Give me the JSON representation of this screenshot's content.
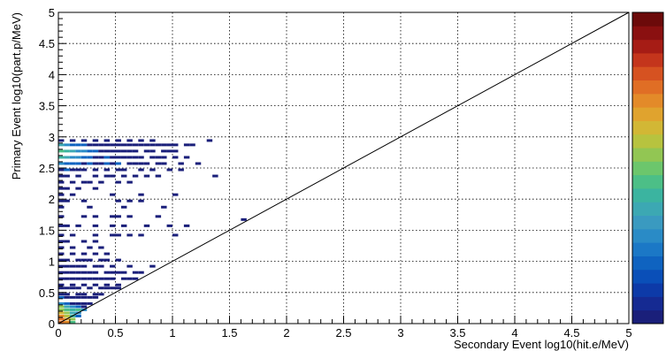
{
  "chart_data": {
    "type": "heatmap",
    "title": "",
    "xlabel": "Secondary Event log10(hit.e/MeV)",
    "ylabel": "Primary Event log10(part.p/MeV)",
    "xlim": [
      0,
      5
    ],
    "ylim": [
      0,
      5
    ],
    "x_ticks": [
      "0",
      "0.5",
      "1",
      "1.5",
      "2",
      "2.5",
      "3",
      "3.5",
      "4",
      "4.5",
      "5"
    ],
    "y_ticks": [
      "0",
      "0.5",
      "1",
      "1.5",
      "2",
      "2.5",
      "3",
      "3.5",
      "4",
      "4.5",
      "5"
    ],
    "grid": true,
    "reference_line": {
      "from": [
        0,
        0
      ],
      "to": [
        5,
        5
      ],
      "color": "#000000"
    },
    "bin_width": 0.05,
    "palette": [
      "#1a1f7a",
      "#152a92",
      "#0d3aa8",
      "#0a4fb8",
      "#0f63c0",
      "#1b78c6",
      "#2a8bc6",
      "#3a9ac0",
      "#3ca8b3",
      "#3bb4a0",
      "#4cbf87",
      "#6cc66c",
      "#92c653",
      "#b7c33f",
      "#d2b735",
      "#e0a32e",
      "#e38a29",
      "#e06e25",
      "#d65221",
      "#c4351c",
      "#a61c15",
      "#8a1010",
      "#6c0a0a"
    ],
    "cells": [
      [
        0.0,
        0.0,
        22
      ],
      [
        0.05,
        0.0,
        17
      ],
      [
        0.1,
        0.0,
        6
      ],
      [
        0.0,
        0.05,
        20
      ],
      [
        0.05,
        0.05,
        16
      ],
      [
        0.1,
        0.05,
        8
      ],
      [
        0.0,
        0.1,
        18
      ],
      [
        0.05,
        0.1,
        10
      ],
      [
        0.1,
        0.1,
        5
      ],
      [
        0.15,
        0.1,
        2
      ],
      [
        0.0,
        0.15,
        13
      ],
      [
        0.05,
        0.15,
        8
      ],
      [
        0.1,
        0.15,
        4
      ],
      [
        0.15,
        0.15,
        3
      ],
      [
        0.0,
        0.2,
        9
      ],
      [
        0.05,
        0.2,
        6
      ],
      [
        0.1,
        0.2,
        5
      ],
      [
        0.15,
        0.2,
        6
      ],
      [
        0.2,
        0.2,
        3
      ],
      [
        0.0,
        0.25,
        8
      ],
      [
        0.05,
        0.25,
        4
      ],
      [
        0.1,
        0.25,
        3
      ],
      [
        0.15,
        0.25,
        2
      ],
      [
        0.2,
        0.25,
        1
      ],
      [
        0.0,
        0.3,
        3
      ],
      [
        0.05,
        0.3,
        2
      ],
      [
        0.1,
        0.3,
        1
      ],
      [
        0.15,
        0.3,
        1
      ],
      [
        0.2,
        0.3,
        1
      ],
      [
        0.25,
        0.3,
        1
      ],
      [
        0.0,
        0.4,
        2
      ],
      [
        0.05,
        0.4,
        1
      ],
      [
        0.1,
        0.4,
        1
      ],
      [
        0.15,
        0.4,
        1
      ],
      [
        0.2,
        0.4,
        1
      ],
      [
        0.25,
        0.4,
        1
      ],
      [
        0.3,
        0.4,
        1
      ],
      [
        0.0,
        0.45,
        1
      ],
      [
        0.05,
        0.45,
        1
      ],
      [
        0.15,
        0.45,
        1
      ],
      [
        0.2,
        0.45,
        1
      ],
      [
        0.3,
        0.45,
        1
      ],
      [
        0.35,
        0.45,
        1
      ],
      [
        0.0,
        0.55,
        1
      ],
      [
        0.05,
        0.55,
        1
      ],
      [
        0.1,
        0.55,
        1
      ],
      [
        0.15,
        0.55,
        1
      ],
      [
        0.25,
        0.55,
        1
      ],
      [
        0.35,
        0.55,
        1
      ],
      [
        0.4,
        0.55,
        1
      ],
      [
        0.45,
        0.55,
        1
      ],
      [
        0.5,
        0.55,
        1
      ],
      [
        0.0,
        0.6,
        1
      ],
      [
        0.1,
        0.6,
        1
      ],
      [
        0.2,
        0.6,
        1
      ],
      [
        0.3,
        0.6,
        1
      ],
      [
        0.4,
        0.6,
        1
      ],
      [
        0.5,
        0.6,
        1
      ],
      [
        0.0,
        0.7,
        1
      ],
      [
        0.05,
        0.7,
        1
      ],
      [
        0.1,
        0.7,
        1
      ],
      [
        0.15,
        0.7,
        1
      ],
      [
        0.2,
        0.7,
        1
      ],
      [
        0.25,
        0.7,
        1
      ],
      [
        0.3,
        0.7,
        1
      ],
      [
        0.35,
        0.7,
        1
      ],
      [
        0.4,
        0.7,
        1
      ],
      [
        0.45,
        0.7,
        1
      ],
      [
        0.55,
        0.7,
        1
      ],
      [
        0.6,
        0.7,
        1
      ],
      [
        0.65,
        0.7,
        1
      ],
      [
        0.0,
        0.8,
        1
      ],
      [
        0.05,
        0.8,
        1
      ],
      [
        0.1,
        0.8,
        1
      ],
      [
        0.15,
        0.8,
        1
      ],
      [
        0.2,
        0.8,
        1
      ],
      [
        0.25,
        0.8,
        1
      ],
      [
        0.3,
        0.8,
        1
      ],
      [
        0.4,
        0.8,
        1
      ],
      [
        0.45,
        0.8,
        1
      ],
      [
        0.5,
        0.8,
        1
      ],
      [
        0.55,
        0.8,
        1
      ],
      [
        0.65,
        0.8,
        1
      ],
      [
        0.7,
        0.8,
        1
      ],
      [
        0.0,
        0.9,
        1
      ],
      [
        0.05,
        0.9,
        1
      ],
      [
        0.1,
        0.9,
        1
      ],
      [
        0.15,
        0.9,
        1
      ],
      [
        0.2,
        0.9,
        1
      ],
      [
        0.3,
        0.9,
        1
      ],
      [
        0.35,
        0.9,
        1
      ],
      [
        0.45,
        0.9,
        1
      ],
      [
        0.6,
        0.9,
        1
      ],
      [
        0.8,
        0.9,
        1
      ],
      [
        0.0,
        1.0,
        1
      ],
      [
        0.05,
        1.0,
        1
      ],
      [
        0.15,
        1.0,
        1
      ],
      [
        0.2,
        1.0,
        1
      ],
      [
        0.25,
        1.0,
        1
      ],
      [
        0.35,
        1.0,
        1
      ],
      [
        0.4,
        1.0,
        1
      ],
      [
        0.5,
        1.0,
        1
      ],
      [
        0.0,
        1.1,
        1
      ],
      [
        0.1,
        1.1,
        1
      ],
      [
        0.2,
        1.1,
        1
      ],
      [
        0.3,
        1.1,
        1
      ],
      [
        0.4,
        1.1,
        1
      ],
      [
        0.0,
        1.2,
        1
      ],
      [
        0.1,
        1.2,
        1
      ],
      [
        0.25,
        1.2,
        1
      ],
      [
        0.35,
        1.2,
        1
      ],
      [
        0.0,
        1.3,
        1
      ],
      [
        0.05,
        1.3,
        1
      ],
      [
        0.2,
        1.3,
        1
      ],
      [
        0.3,
        1.3,
        1
      ],
      [
        0.0,
        1.4,
        1
      ],
      [
        0.1,
        1.4,
        1
      ],
      [
        0.3,
        1.4,
        1
      ],
      [
        0.45,
        1.4,
        1
      ],
      [
        0.5,
        1.4,
        1
      ],
      [
        0.6,
        1.4,
        1
      ],
      [
        0.7,
        1.4,
        1
      ],
      [
        1.0,
        1.4,
        1
      ],
      [
        0.0,
        1.55,
        1
      ],
      [
        0.05,
        1.55,
        1
      ],
      [
        0.15,
        1.55,
        1
      ],
      [
        0.3,
        1.55,
        1
      ],
      [
        0.45,
        1.55,
        1
      ],
      [
        0.55,
        1.55,
        1
      ],
      [
        0.75,
        1.55,
        1
      ],
      [
        0.95,
        1.55,
        1
      ],
      [
        1.1,
        1.55,
        1
      ],
      [
        1.6,
        1.65,
        1
      ],
      [
        0.0,
        1.7,
        1
      ],
      [
        0.2,
        1.7,
        1
      ],
      [
        0.3,
        1.7,
        1
      ],
      [
        0.45,
        1.7,
        1
      ],
      [
        0.5,
        1.7,
        1
      ],
      [
        0.6,
        1.7,
        1
      ],
      [
        0.85,
        1.7,
        1
      ],
      [
        0.0,
        1.85,
        1
      ],
      [
        0.25,
        1.85,
        1
      ],
      [
        0.55,
        1.85,
        1
      ],
      [
        0.9,
        1.85,
        1
      ],
      [
        0.0,
        1.95,
        1
      ],
      [
        0.05,
        1.95,
        1
      ],
      [
        0.2,
        1.95,
        1
      ],
      [
        0.5,
        1.95,
        1
      ],
      [
        0.6,
        1.95,
        1
      ],
      [
        0.7,
        1.95,
        1
      ],
      [
        0.0,
        2.05,
        1
      ],
      [
        0.1,
        2.05,
        1
      ],
      [
        0.45,
        2.05,
        1
      ],
      [
        0.7,
        2.05,
        1
      ],
      [
        1.0,
        2.05,
        1
      ],
      [
        0.0,
        2.15,
        1
      ],
      [
        0.05,
        2.15,
        1
      ],
      [
        0.15,
        2.15,
        1
      ],
      [
        0.3,
        2.15,
        1
      ],
      [
        0.0,
        2.25,
        1
      ],
      [
        0.1,
        2.25,
        1
      ],
      [
        0.2,
        2.25,
        1
      ],
      [
        0.25,
        2.25,
        1
      ],
      [
        0.35,
        2.25,
        1
      ],
      [
        0.5,
        2.25,
        1
      ],
      [
        0.6,
        2.25,
        1
      ],
      [
        0.0,
        2.35,
        1
      ],
      [
        0.05,
        2.35,
        1
      ],
      [
        0.15,
        2.35,
        1
      ],
      [
        0.3,
        2.35,
        1
      ],
      [
        0.4,
        2.35,
        1
      ],
      [
        0.45,
        2.35,
        1
      ],
      [
        0.55,
        2.35,
        1
      ],
      [
        0.65,
        2.35,
        1
      ],
      [
        0.75,
        2.35,
        1
      ],
      [
        0.85,
        2.35,
        1
      ],
      [
        1.35,
        2.35,
        1
      ],
      [
        0.0,
        2.45,
        1
      ],
      [
        0.05,
        2.45,
        2
      ],
      [
        0.1,
        2.45,
        1
      ],
      [
        0.15,
        2.45,
        1
      ],
      [
        0.2,
        2.45,
        1
      ],
      [
        0.3,
        2.45,
        1
      ],
      [
        0.4,
        2.45,
        1
      ],
      [
        0.5,
        2.45,
        1
      ],
      [
        0.55,
        2.45,
        1
      ],
      [
        0.7,
        2.45,
        1
      ],
      [
        0.8,
        2.45,
        1
      ],
      [
        0.95,
        2.45,
        1
      ],
      [
        1.05,
        2.45,
        1
      ],
      [
        0.0,
        2.55,
        3
      ],
      [
        0.05,
        2.55,
        2
      ],
      [
        0.1,
        2.55,
        2
      ],
      [
        0.15,
        2.55,
        2
      ],
      [
        0.2,
        2.55,
        1
      ],
      [
        0.25,
        2.55,
        2
      ],
      [
        0.3,
        2.55,
        1
      ],
      [
        0.35,
        2.55,
        1
      ],
      [
        0.4,
        2.55,
        2
      ],
      [
        0.45,
        2.55,
        1
      ],
      [
        0.5,
        2.55,
        2
      ],
      [
        0.6,
        2.55,
        1
      ],
      [
        0.65,
        2.55,
        1
      ],
      [
        0.7,
        2.55,
        1
      ],
      [
        0.75,
        2.55,
        1
      ],
      [
        0.85,
        2.55,
        1
      ],
      [
        0.9,
        2.55,
        1
      ],
      [
        1.05,
        2.55,
        1
      ],
      [
        1.2,
        2.55,
        1
      ],
      [
        0.0,
        2.65,
        5
      ],
      [
        0.05,
        2.65,
        4
      ],
      [
        0.1,
        2.65,
        3
      ],
      [
        0.15,
        2.65,
        3
      ],
      [
        0.2,
        2.65,
        2
      ],
      [
        0.25,
        2.65,
        2
      ],
      [
        0.3,
        2.65,
        1
      ],
      [
        0.35,
        2.65,
        1
      ],
      [
        0.4,
        2.65,
        2
      ],
      [
        0.45,
        2.65,
        1
      ],
      [
        0.5,
        2.65,
        1
      ],
      [
        0.55,
        2.65,
        1
      ],
      [
        0.6,
        2.65,
        1
      ],
      [
        0.65,
        2.65,
        1
      ],
      [
        0.7,
        2.65,
        1
      ],
      [
        0.8,
        2.65,
        1
      ],
      [
        0.85,
        2.65,
        1
      ],
      [
        0.9,
        2.65,
        1
      ],
      [
        1.0,
        2.65,
        1
      ],
      [
        1.1,
        2.65,
        1
      ],
      [
        0.0,
        2.75,
        6
      ],
      [
        0.05,
        2.75,
        5
      ],
      [
        0.1,
        2.75,
        4
      ],
      [
        0.15,
        2.75,
        3
      ],
      [
        0.2,
        2.75,
        3
      ],
      [
        0.25,
        2.75,
        2
      ],
      [
        0.3,
        2.75,
        2
      ],
      [
        0.35,
        2.75,
        1
      ],
      [
        0.4,
        2.75,
        1
      ],
      [
        0.45,
        2.75,
        1
      ],
      [
        0.5,
        2.75,
        1
      ],
      [
        0.55,
        2.75,
        1
      ],
      [
        0.6,
        2.75,
        1
      ],
      [
        0.65,
        2.75,
        1
      ],
      [
        0.75,
        2.75,
        1
      ],
      [
        0.8,
        2.75,
        1
      ],
      [
        0.9,
        2.75,
        1
      ],
      [
        0.95,
        2.75,
        1
      ],
      [
        1.0,
        2.75,
        1
      ],
      [
        0.0,
        2.85,
        4
      ],
      [
        0.05,
        2.85,
        3
      ],
      [
        0.1,
        2.85,
        2
      ],
      [
        0.15,
        2.85,
        2
      ],
      [
        0.2,
        2.85,
        2
      ],
      [
        0.25,
        2.85,
        1
      ],
      [
        0.3,
        2.85,
        1
      ],
      [
        0.35,
        2.85,
        1
      ],
      [
        0.4,
        2.85,
        1
      ],
      [
        0.45,
        2.85,
        1
      ],
      [
        0.5,
        2.85,
        1
      ],
      [
        0.55,
        2.85,
        1
      ],
      [
        0.6,
        2.85,
        1
      ],
      [
        0.65,
        2.85,
        1
      ],
      [
        0.7,
        2.85,
        1
      ],
      [
        0.75,
        2.85,
        1
      ],
      [
        0.8,
        2.85,
        1
      ],
      [
        0.85,
        2.85,
        1
      ],
      [
        0.9,
        2.85,
        1
      ],
      [
        0.95,
        2.85,
        1
      ],
      [
        1.0,
        2.85,
        1
      ],
      [
        1.1,
        2.85,
        1
      ],
      [
        1.15,
        2.85,
        1
      ],
      [
        0.0,
        2.92,
        1
      ],
      [
        0.1,
        2.92,
        1
      ],
      [
        0.2,
        2.92,
        1
      ],
      [
        0.3,
        2.92,
        1
      ],
      [
        0.4,
        2.92,
        1
      ],
      [
        0.5,
        2.92,
        1
      ],
      [
        0.6,
        2.92,
        1
      ],
      [
        0.7,
        2.92,
        1
      ],
      [
        0.8,
        2.92,
        1
      ],
      [
        1.3,
        2.92,
        1
      ]
    ]
  }
}
